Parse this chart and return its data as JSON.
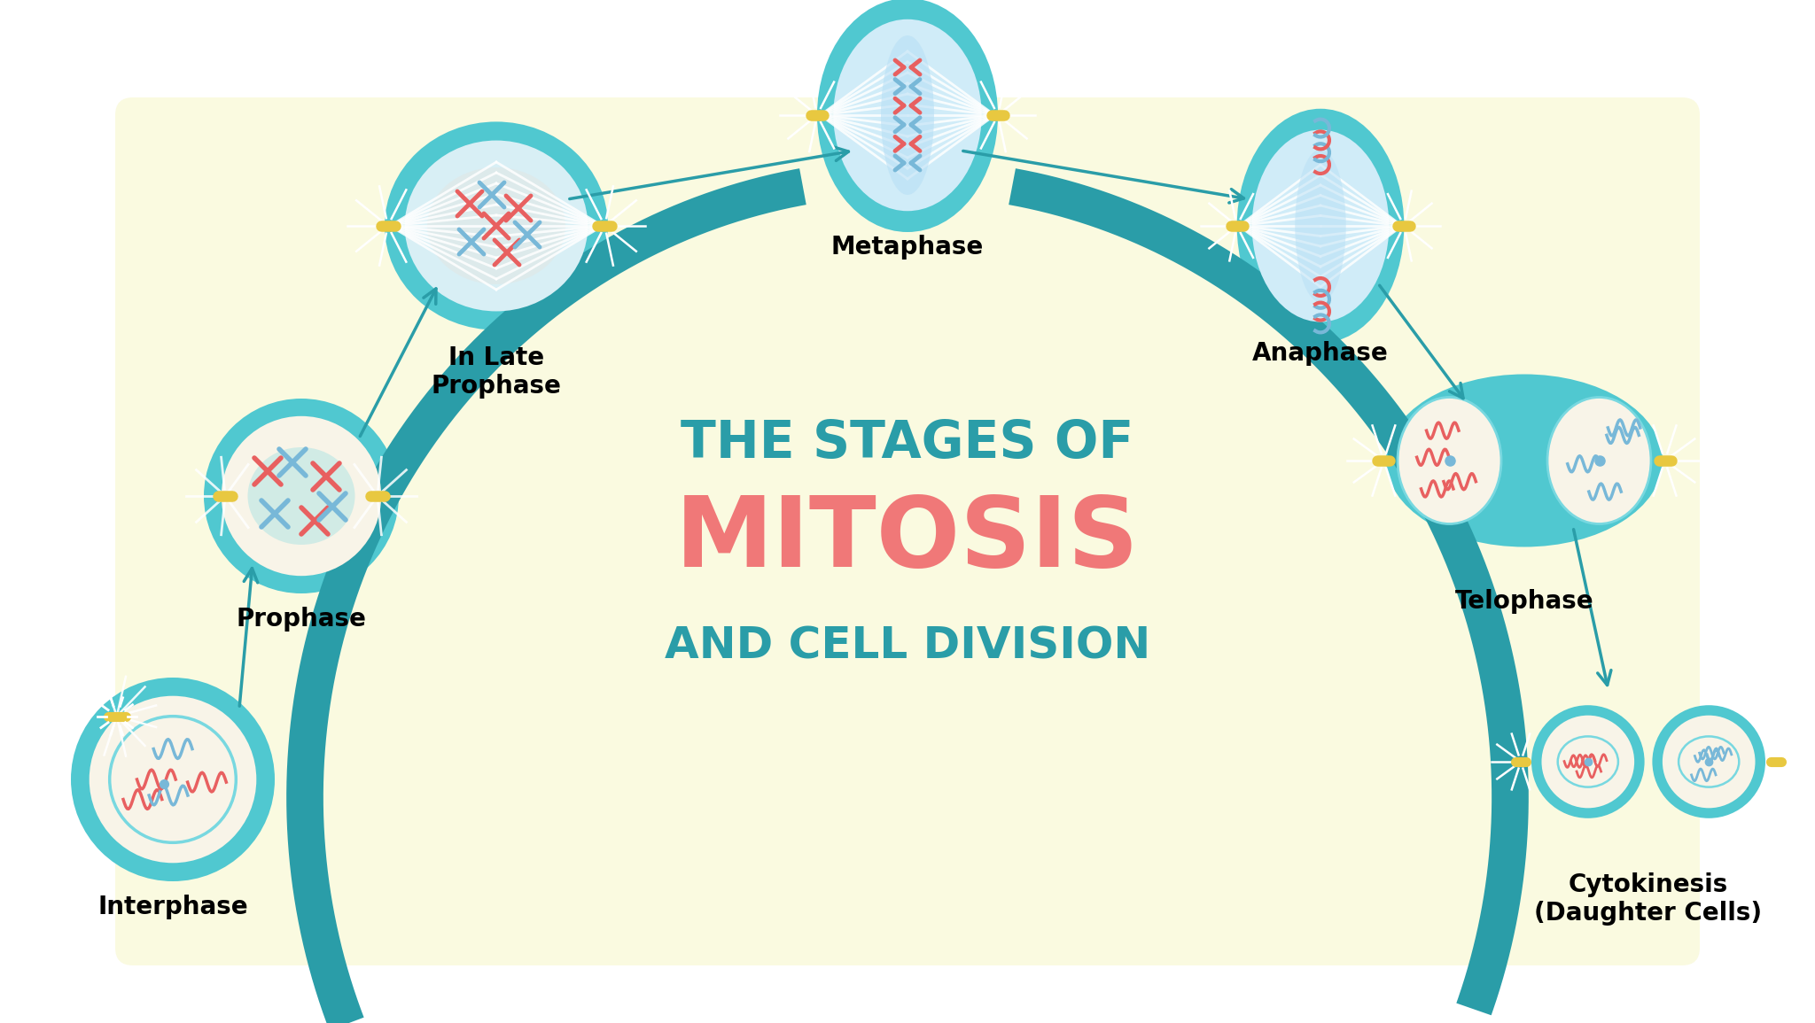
{
  "bg_color": "#ffffff",
  "cream_bg": "#fafae0",
  "teal": "#2a9da8",
  "teal_arrow": "#2a9da8",
  "red_text": "#f07878",
  "cell_teal": "#50c8d0",
  "cell_mid": "#78d8e0",
  "cell_light": "#a8eef2",
  "chromosome_red": "#e86060",
  "chromosome_blue": "#78b8d8",
  "yellow": "#e8c840",
  "white": "#ffffff",
  "nucleus_cream": "#f8f4e8",
  "nucleus_gray": "#e0e8e8",
  "title_line1": "THE STAGES OF",
  "title_line2": "MITOSIS",
  "title_line3": "AND CELL DIVISION",
  "label_fontsize": 20,
  "title1_fontsize": 42,
  "title2_fontsize": 80,
  "title3_fontsize": 36
}
